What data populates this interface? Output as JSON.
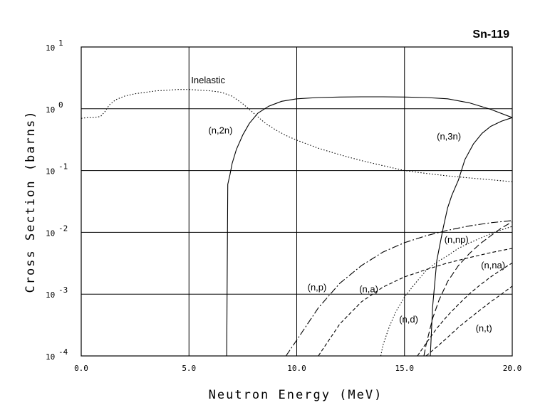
{
  "chart_data": {
    "type": "line",
    "title": "Sn-119",
    "xlabel": "Neutron Energy (MeV)",
    "ylabel": "Cross Section (barns)",
    "x_scale": "linear",
    "y_scale": "log",
    "xlim": [
      0,
      20
    ],
    "ylim": [
      0.0001,
      10
    ],
    "x_ticks": [
      "0.0",
      "5.0",
      "10.0",
      "15.0",
      "20.0"
    ],
    "x_tick_values": [
      0,
      5,
      10,
      15,
      20
    ],
    "y_ticks": [
      {
        "base": "10",
        "exp": "1",
        "value": 10
      },
      {
        "base": "10",
        "exp": "0",
        "value": 1
      },
      {
        "base": "10",
        "exp": "-1",
        "value": 0.1
      },
      {
        "base": "10",
        "exp": "-2",
        "value": 0.01
      },
      {
        "base": "10",
        "exp": "-3",
        "value": 0.001
      },
      {
        "base": "10",
        "exp": "-4",
        "value": 0.0001
      }
    ],
    "grid": true,
    "series": [
      {
        "name": "Inelastic",
        "style": "dotted",
        "x": [
          0.0,
          0.3,
          0.6,
          0.9,
          1.1,
          1.3,
          1.6,
          2.0,
          2.5,
          3.0,
          3.5,
          4.0,
          4.5,
          5.0,
          5.5,
          6.0,
          6.5,
          7.0,
          7.5,
          8.0,
          8.5,
          9.0,
          9.5,
          10.0,
          11.0,
          12.0,
          13.0,
          14.0,
          15.0,
          16.0,
          17.0,
          18.0,
          19.0,
          20.0
        ],
        "y": [
          0.7,
          0.72,
          0.72,
          0.75,
          0.9,
          1.15,
          1.4,
          1.6,
          1.75,
          1.85,
          1.95,
          2.0,
          2.05,
          2.05,
          2.0,
          1.95,
          1.85,
          1.6,
          1.2,
          0.85,
          0.6,
          0.46,
          0.37,
          0.31,
          0.23,
          0.18,
          0.145,
          0.12,
          0.1,
          0.09,
          0.082,
          0.076,
          0.071,
          0.066
        ]
      },
      {
        "name": "(n,2n)",
        "style": "solid",
        "x": [
          6.75,
          6.8,
          6.9,
          7.0,
          7.2,
          7.5,
          7.8,
          8.2,
          8.7,
          9.3,
          10.0,
          11.0,
          12.0,
          13.0,
          14.0,
          15.0,
          16.0,
          17.0,
          18.0,
          19.0,
          20.0
        ],
        "y": [
          0.0001,
          0.06,
          0.085,
          0.13,
          0.22,
          0.38,
          0.58,
          0.85,
          1.1,
          1.32,
          1.45,
          1.52,
          1.55,
          1.56,
          1.56,
          1.55,
          1.52,
          1.45,
          1.25,
          0.98,
          0.72
        ]
      },
      {
        "name": "(n,3n)",
        "style": "solid",
        "x": [
          16.2,
          16.3,
          16.5,
          16.8,
          17.0,
          17.2,
          17.5,
          17.8,
          18.2,
          18.6,
          19.0,
          19.5,
          20.0
        ],
        "y": [
          0.0001,
          0.0006,
          0.0035,
          0.012,
          0.025,
          0.04,
          0.07,
          0.15,
          0.27,
          0.4,
          0.52,
          0.63,
          0.72
        ]
      },
      {
        "name": "(n,p)",
        "style": "longdash-dot",
        "x": [
          9.5,
          10.0,
          11.0,
          12.0,
          13.0,
          14.0,
          15.0,
          16.0,
          17.0,
          18.0,
          19.0,
          20.0
        ],
        "y": [
          0.0001,
          0.00018,
          0.0006,
          0.0015,
          0.0029,
          0.0048,
          0.0068,
          0.0088,
          0.0108,
          0.0127,
          0.0143,
          0.0155
        ]
      },
      {
        "name": "(n,a)",
        "style": "dashed",
        "x": [
          11.0,
          12.0,
          13.0,
          14.0,
          15.0,
          16.0,
          17.0,
          18.0,
          19.0,
          20.0
        ],
        "y": [
          0.0001,
          0.00033,
          0.00075,
          0.0013,
          0.0019,
          0.0025,
          0.0032,
          0.0039,
          0.0047,
          0.0055
        ]
      },
      {
        "name": "(n,d)",
        "style": "dotted",
        "x": [
          13.9,
          14.0,
          14.3,
          14.6,
          15.0,
          15.5,
          16.0,
          16.5,
          17.0,
          17.5,
          18.0,
          18.5,
          19.0,
          19.5,
          20.0
        ],
        "y": [
          0.0001,
          0.00015,
          0.0003,
          0.00052,
          0.0009,
          0.0015,
          0.0024,
          0.0033,
          0.0042,
          0.0055,
          0.0067,
          0.008,
          0.0095,
          0.011,
          0.0125
        ]
      },
      {
        "name": "(n,np)",
        "style": "long-dash",
        "x": [
          15.9,
          16.0,
          16.3,
          16.6,
          17.0,
          17.5,
          18.0,
          18.5,
          19.0,
          19.5,
          20.0
        ],
        "y": [
          0.0001,
          0.00015,
          0.0004,
          0.0008,
          0.0016,
          0.0029,
          0.0045,
          0.0065,
          0.0088,
          0.0118,
          0.0148
        ]
      },
      {
        "name": "(n,na)",
        "style": "dashed",
        "x": [
          15.6,
          16.0,
          16.5,
          17.0,
          17.5,
          18.0,
          18.5,
          19.0,
          19.5,
          20.0
        ],
        "y": [
          0.0001,
          0.00016,
          0.00028,
          0.00045,
          0.00068,
          0.001,
          0.0014,
          0.0019,
          0.0025,
          0.0032
        ]
      },
      {
        "name": "(n,t)",
        "style": "dashed",
        "x": [
          16.0,
          16.5,
          17.0,
          17.5,
          18.0,
          18.5,
          19.0,
          19.5,
          20.0
        ],
        "y": [
          0.0001,
          0.00014,
          0.0002,
          0.00029,
          0.0004,
          0.00055,
          0.00075,
          0.001,
          0.00135
        ]
      }
    ],
    "annotations": [
      {
        "text": "Inelastic",
        "x": 5.1,
        "y": 2.6
      },
      {
        "text": "(n,2n)",
        "x": 5.9,
        "y": 0.4
      },
      {
        "text": "(n,3n)",
        "x": 16.5,
        "y": 0.32
      },
      {
        "text": "(n,p)",
        "x": 10.5,
        "y": 0.00115
      },
      {
        "text": "(n,a)",
        "x": 12.9,
        "y": 0.00108
      },
      {
        "text": "(n,d)",
        "x": 14.75,
        "y": 0.00035
      },
      {
        "text": "(n,np)",
        "x": 16.85,
        "y": 0.0068
      },
      {
        "text": "(n,na)",
        "x": 18.55,
        "y": 0.0026
      },
      {
        "text": "(n,t)",
        "x": 18.3,
        "y": 0.00025
      }
    ]
  }
}
